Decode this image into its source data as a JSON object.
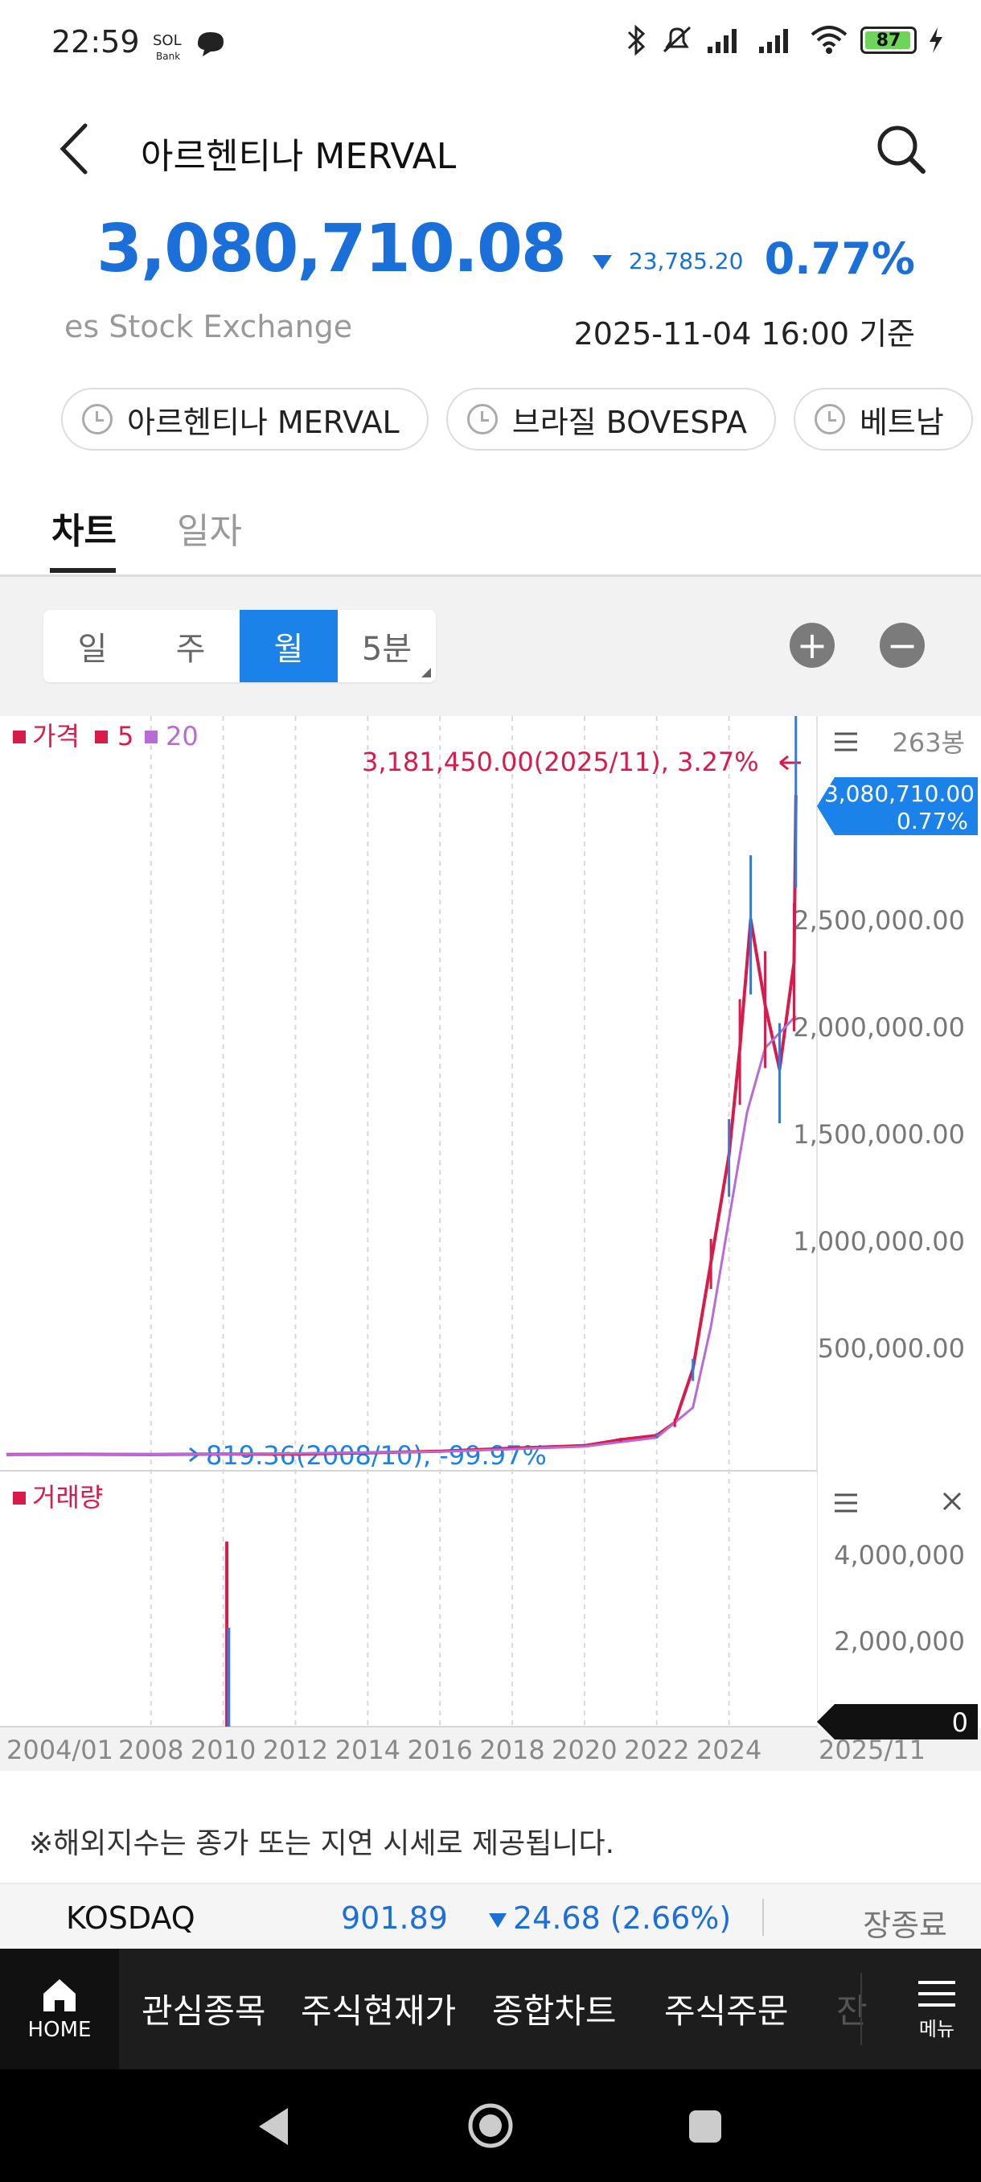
{
  "status_bar": {
    "time": "22:59",
    "bank_label": "Bank",
    "battery": "87"
  },
  "header": {
    "title": "아르헨티나 MERVAL"
  },
  "quote": {
    "price": "3,080,710.08",
    "change_abs": "23,785.20",
    "change_pct": "0.77%",
    "exchange": "es Stock Exchange",
    "as_of": "2025-11-04 16:00 기준"
  },
  "chips": [
    {
      "label": "아르헨티나 MERVAL"
    },
    {
      "label": "브라질 BOVESPA"
    },
    {
      "label": "베트남"
    }
  ],
  "tabs": {
    "chart": "차트",
    "daily": "일자"
  },
  "periods": [
    {
      "label": "일"
    },
    {
      "label": "주"
    },
    {
      "label": "월",
      "active": true
    },
    {
      "label": "5분"
    }
  ],
  "zoom": {
    "in": "+",
    "out": "−"
  },
  "chart": {
    "legend_price": "가격",
    "legend_ma5": "5",
    "legend_ma20": "20",
    "candle_count": "263봉",
    "price_tag_value": "3,080,710.00",
    "price_tag_pct": "0.77%",
    "high_annotation": "3,181,450.00(2025/11), 3.27%",
    "low_annotation": "819.36(2008/10), -99.97%",
    "volume_label": "거래량",
    "volume_tag": "0",
    "colors": {
      "up": "#d81b4a",
      "down": "#3a78d6",
      "ma20": "#b86ad6",
      "accent": "#1a82e8"
    }
  },
  "chart_data": {
    "type": "line",
    "title": "",
    "x_tick_labels": [
      "2004/01",
      "2008",
      "2010",
      "2012",
      "2014",
      "2016",
      "2018",
      "2020",
      "2022",
      "2024",
      "2025/11"
    ],
    "price_axis_ticks": [
      "2,500,000.00",
      "2,000,000.00",
      "1,500,000.00",
      "1,000,000.00",
      "500,000.00"
    ],
    "volume_axis_ticks": [
      "4,000,000",
      "2,000,000"
    ],
    "series": [
      {
        "name": "가격",
        "x": [
          "2004",
          "2006",
          "2008",
          "2010",
          "2012",
          "2014",
          "2016",
          "2018",
          "2019",
          "2020",
          "2021",
          "2022",
          "2022.5",
          "2023",
          "2023.5",
          "2024",
          "2024.3",
          "2024.6",
          "2025",
          "2025.4",
          "2025.8",
          "2025.85"
        ],
        "values": [
          1200,
          1800,
          820,
          2500,
          2800,
          8500,
          16000,
          30000,
          36000,
          42000,
          70000,
          90000,
          150000,
          400000,
          900000,
          1400000,
          1900000,
          2500000,
          2100000,
          1800000,
          2300000,
          3080710
        ]
      },
      {
        "name": "20",
        "x": [
          "2004",
          "2010",
          "2016",
          "2020",
          "2022",
          "2023",
          "2023.5",
          "2024",
          "2024.5",
          "2025",
          "2025.85"
        ],
        "values": [
          1100,
          2400,
          14000,
          38000,
          80000,
          220000,
          600000,
          1100000,
          1600000,
          1900000,
          2050000
        ]
      }
    ],
    "volume": {
      "x": [
        "2010.1",
        "2010.15"
      ],
      "values": [
        4300000,
        2300000
      ]
    },
    "price_ylim": [
      0,
      3300000
    ],
    "volume_ylim": [
      0,
      4600000
    ],
    "legend": "top-left"
  },
  "notice": "※해외지수는 종가 또는 지연 시세로 제공됩니다.",
  "ticker": {
    "name": "KOSDAQ",
    "value": "901.89",
    "change": "24.68 (2.66%)",
    "status": "장종료"
  },
  "bottom_nav": {
    "home": "HOME",
    "items": [
      "관심종목",
      "주식현재가",
      "종합차트",
      "주식주문"
    ],
    "faded": "잔",
    "menu": "메뉴"
  }
}
